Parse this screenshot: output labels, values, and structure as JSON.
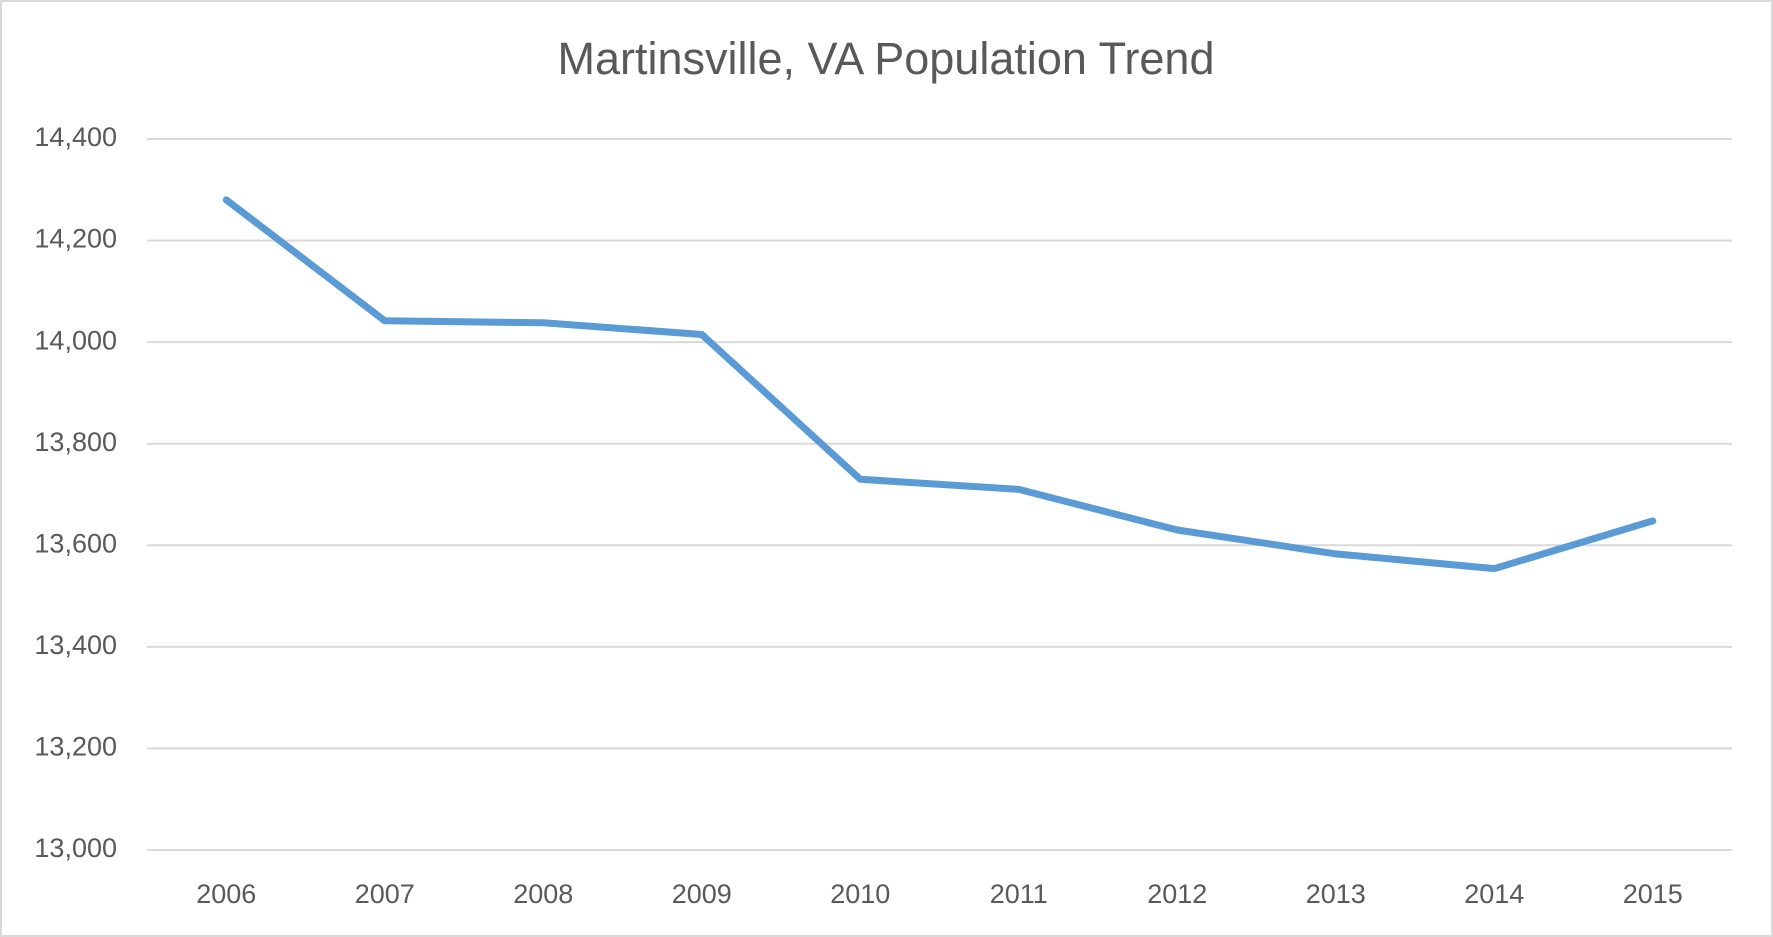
{
  "chart_data": {
    "type": "line",
    "title": "Martinsville, VA Population Trend",
    "categories": [
      "2006",
      "2007",
      "2008",
      "2009",
      "2010",
      "2011",
      "2012",
      "2013",
      "2014",
      "2015"
    ],
    "values": [
      14280,
      14042,
      14038,
      14015,
      13730,
      13710,
      13630,
      13583,
      13554,
      13648
    ],
    "color": "#5b9bd5",
    "ylim": [
      13000,
      14400
    ],
    "yticks": [
      {
        "value": 13000,
        "label": "13,000"
      },
      {
        "value": 13200,
        "label": "13,200"
      },
      {
        "value": 13400,
        "label": "13,400"
      },
      {
        "value": 13600,
        "label": "13,600"
      },
      {
        "value": 13800,
        "label": "13,800"
      },
      {
        "value": 14000,
        "label": "14,000"
      },
      {
        "value": 14200,
        "label": "14,200"
      },
      {
        "value": 14400,
        "label": "14,400"
      }
    ],
    "grid": true
  }
}
